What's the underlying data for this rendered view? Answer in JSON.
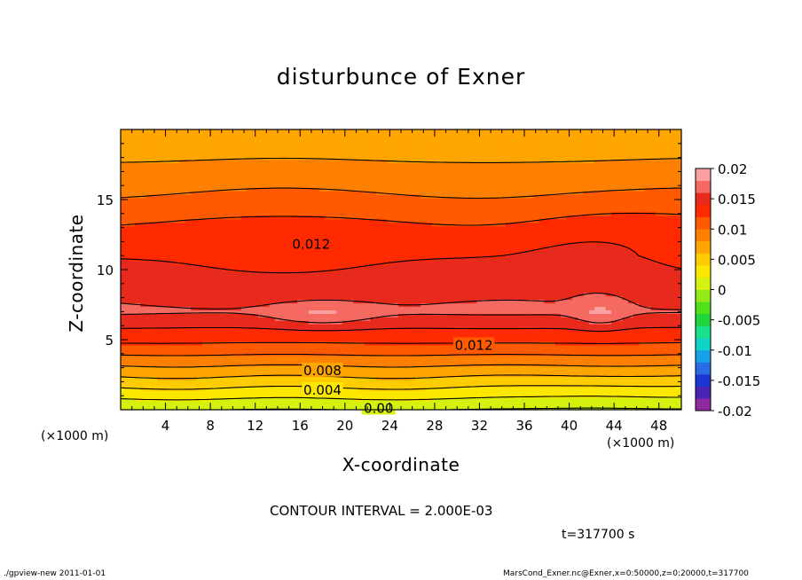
{
  "chart_data": {
    "type": "heatmap",
    "subtype": "filled-contour",
    "title": "disturbunce of Exner",
    "xlabel": "X-coordinate",
    "ylabel": "Z-coordinate",
    "x_unit_left": "(×1000 m)",
    "x_unit_right": "(×1000 m)",
    "xlim": [
      0,
      50
    ],
    "ylim": [
      0,
      20
    ],
    "xticks": [
      4,
      8,
      12,
      16,
      20,
      24,
      28,
      32,
      36,
      40,
      44,
      48
    ],
    "yticks": [
      5,
      10,
      15
    ],
    "contour_interval_text": "CONTOUR INTERVAL = 2.000E-03",
    "time_text": "t=317700 s",
    "contour_labels": [
      {
        "text": "0.012",
        "x": 17,
        "z": 11.8
      },
      {
        "text": "0.012",
        "x": 31.5,
        "z": 4.6
      },
      {
        "text": "0.008",
        "x": 18,
        "z": 2.8
      },
      {
        "text": "0.004",
        "x": 18,
        "z": 1.4
      },
      {
        "text": "0.00",
        "x": 23,
        "z": 0.1
      }
    ],
    "colorbar": {
      "labels": [
        "0.02",
        "0.015",
        "0.01",
        "0.005",
        "0",
        "-0.005",
        "-0.01",
        "-0.015",
        "-0.02"
      ],
      "range": [
        -0.02,
        0.02
      ],
      "colors": [
        "#8e2a9e",
        "#4b23b4",
        "#1b36d2",
        "#2a6be6",
        "#17a2e8",
        "#0fd3c8",
        "#19e08a",
        "#1fd53c",
        "#4fe21b",
        "#93ea17",
        "#d7f10f",
        "#fbe700",
        "#ffcc00",
        "#ffa500",
        "#ff8000",
        "#ff5a00",
        "#ff2a00",
        "#e82a1c",
        "#f46a60",
        "#fba0a0"
      ]
    },
    "grid": false,
    "legend": "colorbar-right"
  },
  "footer": {
    "left": "./gpview-new   2011-01-01",
    "right": "MarsCond_Exner.nc@Exner,x=0:50000,z=0:20000,t=317700"
  }
}
